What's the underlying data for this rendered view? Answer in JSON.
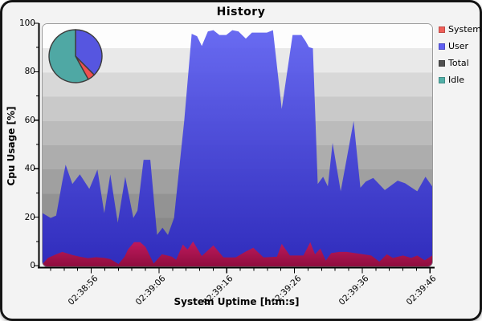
{
  "window": {
    "background": "#f3f3f3",
    "frame_color": "#141414"
  },
  "chart_data": {
    "type": "area",
    "title": "History",
    "xlabel": "System Uptime [h:m:s]",
    "ylabel": "Cpu Usage [%]",
    "ylim": [
      0,
      100
    ],
    "y_ticks": [
      0,
      20,
      40,
      60,
      80,
      100
    ],
    "y_minor_ticks": [
      10,
      30,
      50,
      70,
      90
    ],
    "x_domain_seconds": [
      2.7,
      60.2
    ],
    "x_minor_step_s": 2,
    "x_ticks": [
      {
        "s": 10,
        "label": "02:38:56"
      },
      {
        "s": 20,
        "label": "02:39:06"
      },
      {
        "s": 30,
        "label": "02:39:16"
      },
      {
        "s": 40,
        "label": "02:39:26"
      },
      {
        "s": 50,
        "label": "02:39:36"
      },
      {
        "s": 60,
        "label": "02:39:46"
      }
    ],
    "grid": "banded-background",
    "legend_position": "right",
    "band_colors": [
      "#fdfdfd",
      "#e9e9e9",
      "#d8d8d8",
      "#c9c9c9",
      "#bbbbbb",
      "#adadad",
      "#a0a0a0",
      "#939393",
      "#898989",
      "#808080"
    ],
    "series": [
      {
        "name": "User",
        "color_top": "rgba(92,94,240,0.92)",
        "color_bottom": "rgba(44,40,192,0.95)",
        "points": [
          [
            2.7,
            22
          ],
          [
            3.9,
            20
          ],
          [
            4.7,
            21
          ],
          [
            5.6,
            35
          ],
          [
            6.1,
            42
          ],
          [
            7.1,
            34
          ],
          [
            8.2,
            38
          ],
          [
            9.6,
            32
          ],
          [
            10.8,
            40
          ],
          [
            11.8,
            22
          ],
          [
            12.7,
            38
          ],
          [
            13.8,
            18
          ],
          [
            14.9,
            37
          ],
          [
            16.1,
            20
          ],
          [
            16.7,
            23
          ],
          [
            17.6,
            44
          ],
          [
            18.6,
            44
          ],
          [
            19.6,
            13
          ],
          [
            20.4,
            16
          ],
          [
            21.2,
            13
          ],
          [
            22.1,
            20
          ],
          [
            23.6,
            60
          ],
          [
            24.7,
            96
          ],
          [
            25.5,
            95
          ],
          [
            26.2,
            91
          ],
          [
            27.1,
            97
          ],
          [
            27.9,
            97.5
          ],
          [
            28.8,
            95.5
          ],
          [
            29.8,
            95.5
          ],
          [
            30.7,
            97.5
          ],
          [
            31.6,
            97
          ],
          [
            32.7,
            94
          ],
          [
            33.6,
            96.5
          ],
          [
            34.7,
            96.5
          ],
          [
            35.8,
            96.5
          ],
          [
            36.7,
            97.5
          ],
          [
            38.0,
            65
          ],
          [
            39.6,
            95.5
          ],
          [
            40.9,
            95.5
          ],
          [
            41.5,
            93
          ],
          [
            42.0,
            90.5
          ],
          [
            42.6,
            90
          ],
          [
            43.3,
            34
          ],
          [
            44.1,
            37
          ],
          [
            44.8,
            33
          ],
          [
            45.5,
            51
          ],
          [
            46.7,
            31
          ],
          [
            48.6,
            60
          ],
          [
            49.6,
            32.5
          ],
          [
            50.4,
            35
          ],
          [
            51.5,
            36.5
          ],
          [
            53.2,
            31.5
          ],
          [
            55.1,
            35.4
          ],
          [
            56.2,
            34.3
          ],
          [
            58.0,
            31
          ],
          [
            59.2,
            37
          ],
          [
            60.2,
            33
          ]
        ]
      },
      {
        "name": "System",
        "color_top": "rgba(198,24,88,0.95)",
        "color_bottom": "rgba(146,12,58,0.97)",
        "points": [
          [
            2.7,
            1
          ],
          [
            3.5,
            3.5
          ],
          [
            4.7,
            5
          ],
          [
            5.6,
            6
          ],
          [
            7.1,
            4.7
          ],
          [
            8.2,
            4
          ],
          [
            9.4,
            3.4
          ],
          [
            10.6,
            3.8
          ],
          [
            11.8,
            3.5
          ],
          [
            12.7,
            3
          ],
          [
            13.9,
            1
          ],
          [
            14.8,
            4
          ],
          [
            15.3,
            7
          ],
          [
            16.2,
            10
          ],
          [
            17.1,
            10
          ],
          [
            17.9,
            8
          ],
          [
            19.1,
            1.2
          ],
          [
            20.3,
            5
          ],
          [
            21.1,
            4.5
          ],
          [
            21.8,
            4
          ],
          [
            22.4,
            2.7
          ],
          [
            23.4,
            9
          ],
          [
            24.1,
            7
          ],
          [
            24.9,
            10.3
          ],
          [
            26.2,
            4.3
          ],
          [
            27.9,
            8.7
          ],
          [
            29.4,
            3.7
          ],
          [
            31.2,
            3.7
          ],
          [
            32.6,
            6
          ],
          [
            33.8,
            7.7
          ],
          [
            35.3,
            3.7
          ],
          [
            37.3,
            4
          ],
          [
            38.0,
            9.3
          ],
          [
            39.2,
            4.5
          ],
          [
            41.2,
            4.5
          ],
          [
            42.2,
            10
          ],
          [
            42.9,
            5
          ],
          [
            43.7,
            7.4
          ],
          [
            44.5,
            2.4
          ],
          [
            45.3,
            5.5
          ],
          [
            46.5,
            6
          ],
          [
            47.6,
            6
          ],
          [
            48.8,
            5.5
          ],
          [
            50.0,
            5
          ],
          [
            51.2,
            4.5
          ],
          [
            52.4,
            2
          ],
          [
            53.5,
            5
          ],
          [
            54.4,
            3.5
          ],
          [
            55.9,
            4.5
          ],
          [
            57.1,
            3.5
          ],
          [
            58.0,
            4.5
          ],
          [
            59.1,
            2.5
          ],
          [
            60.2,
            4.5
          ]
        ]
      }
    ]
  },
  "legend": {
    "items": [
      {
        "label": "System",
        "color": "#ef5e58"
      },
      {
        "label": "User",
        "color": "#5e5ef2"
      },
      {
        "label": "Total",
        "color": "#4f4f4f"
      },
      {
        "label": "Idle",
        "color": "#52b0a8"
      }
    ]
  },
  "pie": {
    "outline": "#3c3c3c",
    "slices": [
      {
        "name": "User",
        "percent": 37.5,
        "color": "#5656e0"
      },
      {
        "name": "System",
        "percent": 4.5,
        "color": "#ee5050"
      },
      {
        "name": "Idle",
        "percent": 58.0,
        "color": "#4fa8a4"
      }
    ]
  }
}
